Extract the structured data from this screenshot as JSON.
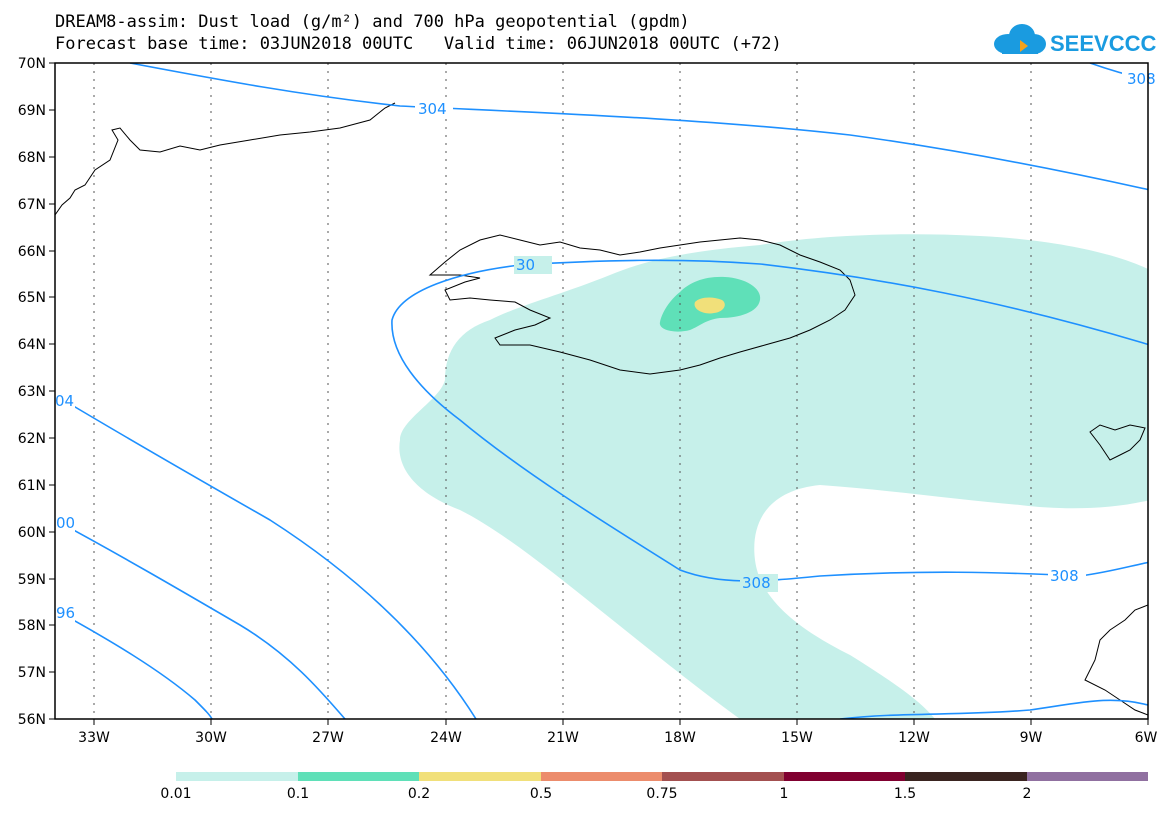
{
  "title": {
    "line1": "DREAM8-assim: Dust load (g/m²) and 700 hPa geopotential (gpdm)",
    "line2": "Forecast base time: 03JUN2018 00UTC   Valid time: 06JUN2018 00UTC (+72)"
  },
  "logo": {
    "text": "SEEVCCC",
    "color": "#1a9be0"
  },
  "map": {
    "lat_labels": [
      "70N",
      "69N",
      "68N",
      "67N",
      "66N",
      "65N",
      "64N",
      "63N",
      "62N",
      "61N",
      "60N",
      "59N",
      "58N",
      "57N",
      "56N"
    ],
    "lon_labels": [
      "33W",
      "30W",
      "27W",
      "24W",
      "21W",
      "18W",
      "15W",
      "12W",
      "9W",
      "6W"
    ],
    "contour_labels": [
      "304",
      "308",
      "30",
      "04",
      "00",
      "96",
      "308",
      "308"
    ],
    "colors": {
      "contour": "#1e90ff",
      "dust_low": "#c6f0ea",
      "dust_mid": "#5fe0b8",
      "dust_high": "#f1e07a"
    }
  },
  "colorbar": {
    "colors": [
      "#c6f0ea",
      "#5fe0b8",
      "#f1e07a",
      "#ec8c6c",
      "#a35050",
      "#800030",
      "#3a2420",
      "#9070a0"
    ],
    "ticks": [
      "0.01",
      "0.1",
      "0.2",
      "0.5",
      "0.75",
      "1",
      "1.5",
      "2"
    ]
  }
}
